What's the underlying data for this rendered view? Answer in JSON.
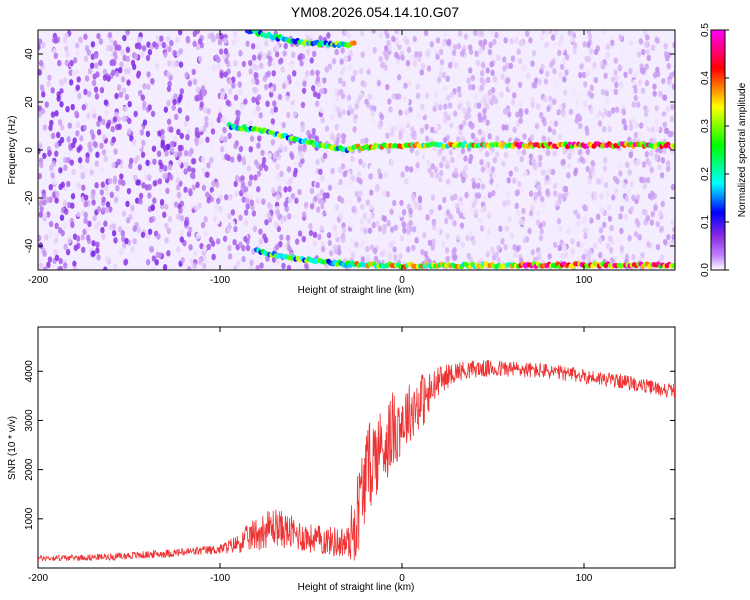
{
  "title": "YM08.2026.054.14.10.G07",
  "chart_data": [
    {
      "type": "heatmap",
      "xlabel": "Height of straight line (km)",
      "ylabel": "Frequency (Hz)",
      "xlim": [
        -200,
        150
      ],
      "ylim": [
        -50,
        50
      ],
      "xticks": [
        -200,
        -100,
        0,
        100
      ],
      "yticks": [
        -40,
        -20,
        0,
        20,
        40
      ],
      "colorbar": {
        "label": "Normalized spectral amplitude",
        "range": [
          0.0,
          0.5
        ],
        "ticks": [
          "0.0",
          "0.1",
          "0.2",
          "0.3",
          "0.4",
          "0.5"
        ],
        "colors": [
          "#ffffff",
          "#8a2be2",
          "#0000ff",
          "#00ffff",
          "#00ff00",
          "#ffff00",
          "#ff0000",
          "#ff00ff"
        ]
      },
      "features": [
        {
          "name": "upper branch",
          "x": [
            -85,
            -70,
            -55,
            -40,
            -25
          ],
          "y": [
            50,
            47,
            45,
            44,
            44
          ]
        },
        {
          "name": "central line",
          "x": [
            -95,
            -75,
            -60,
            -45,
            -30,
            -25,
            0,
            50,
            100,
            150
          ],
          "y": [
            10,
            8,
            5,
            2,
            0,
            1,
            2,
            2,
            2,
            2
          ]
        },
        {
          "name": "lower line",
          "x": [
            -80,
            -60,
            -40,
            -20,
            0,
            50,
            100,
            150
          ],
          "y": [
            -42,
            -45,
            -47,
            -48,
            -48,
            -48,
            -48,
            -48
          ]
        }
      ]
    },
    {
      "type": "line",
      "xlabel": "Height of straight line (km)",
      "ylabel": "SNR (10 * v/v)",
      "xlim": [
        -200,
        150
      ],
      "ylim": [
        0,
        4900
      ],
      "xticks": [
        -200,
        -100,
        0,
        100
      ],
      "yticks": [
        1000,
        2000,
        3000,
        4000
      ],
      "color": "#ee3333",
      "x": [
        -200,
        -180,
        -160,
        -140,
        -120,
        -100,
        -90,
        -80,
        -70,
        -60,
        -50,
        -40,
        -30,
        -25,
        -20,
        -15,
        -10,
        -5,
        0,
        5,
        10,
        15,
        20,
        30,
        40,
        50,
        60,
        80,
        100,
        120,
        140,
        150
      ],
      "y": [
        200,
        210,
        230,
        270,
        320,
        380,
        500,
        700,
        850,
        700,
        600,
        550,
        500,
        1000,
        1900,
        2300,
        2500,
        2800,
        3000,
        3200,
        3400,
        3500,
        3800,
        4000,
        4050,
        4050,
        4050,
        4000,
        3900,
        3800,
        3650,
        3600
      ],
      "noise_amp": [
        60,
        60,
        70,
        80,
        90,
        100,
        200,
        350,
        400,
        350,
        300,
        300,
        350,
        900,
        900,
        900,
        800,
        800,
        700,
        600,
        600,
        500,
        300,
        200,
        180,
        180,
        170,
        160,
        150,
        150,
        150,
        150
      ]
    }
  ]
}
